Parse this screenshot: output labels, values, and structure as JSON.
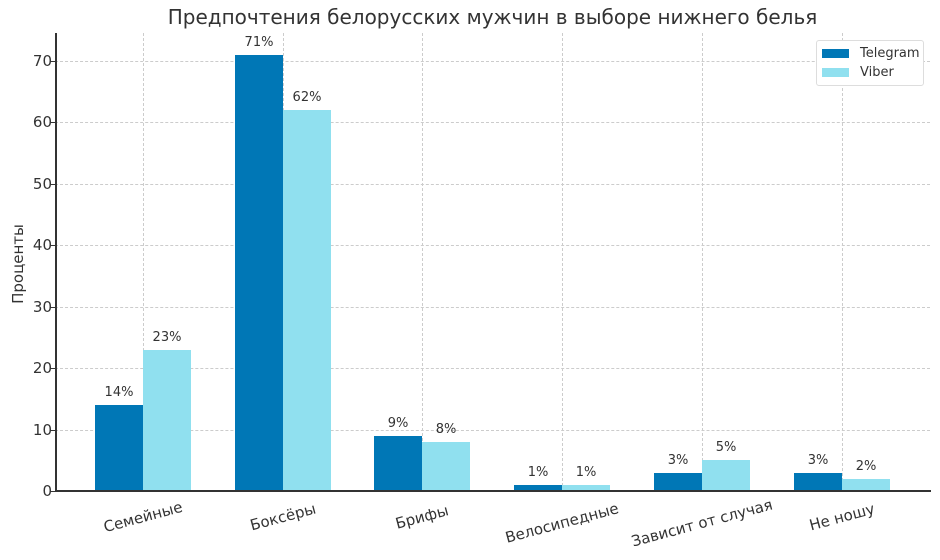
{
  "chart_data": {
    "type": "bar",
    "title": "Предпочтения белорусских мужчин в выборе нижнего белья",
    "xlabel": "",
    "ylabel": "Проценты",
    "ylim": [
      0,
      74.5
    ],
    "yticks": [
      0,
      10,
      20,
      30,
      40,
      50,
      60,
      70
    ],
    "grid": true,
    "legend_position": "upper right",
    "categories": [
      "Семейные",
      "Боксёры",
      "Брифы",
      "Велосипедные",
      "Зависит от случая",
      "Не ношу"
    ],
    "series": [
      {
        "name": "Telegram",
        "color": "#0077b6",
        "values": [
          14,
          71,
          9,
          1,
          3,
          3
        ],
        "labels": [
          "14%",
          "71%",
          "9%",
          "1%",
          "3%",
          "3%"
        ]
      },
      {
        "name": "Viber",
        "color": "#90e0ef",
        "values": [
          23,
          62,
          8,
          1,
          5,
          2
        ],
        "labels": [
          "23%",
          "62%",
          "8%",
          "1%",
          "5%",
          "2%"
        ]
      }
    ]
  }
}
